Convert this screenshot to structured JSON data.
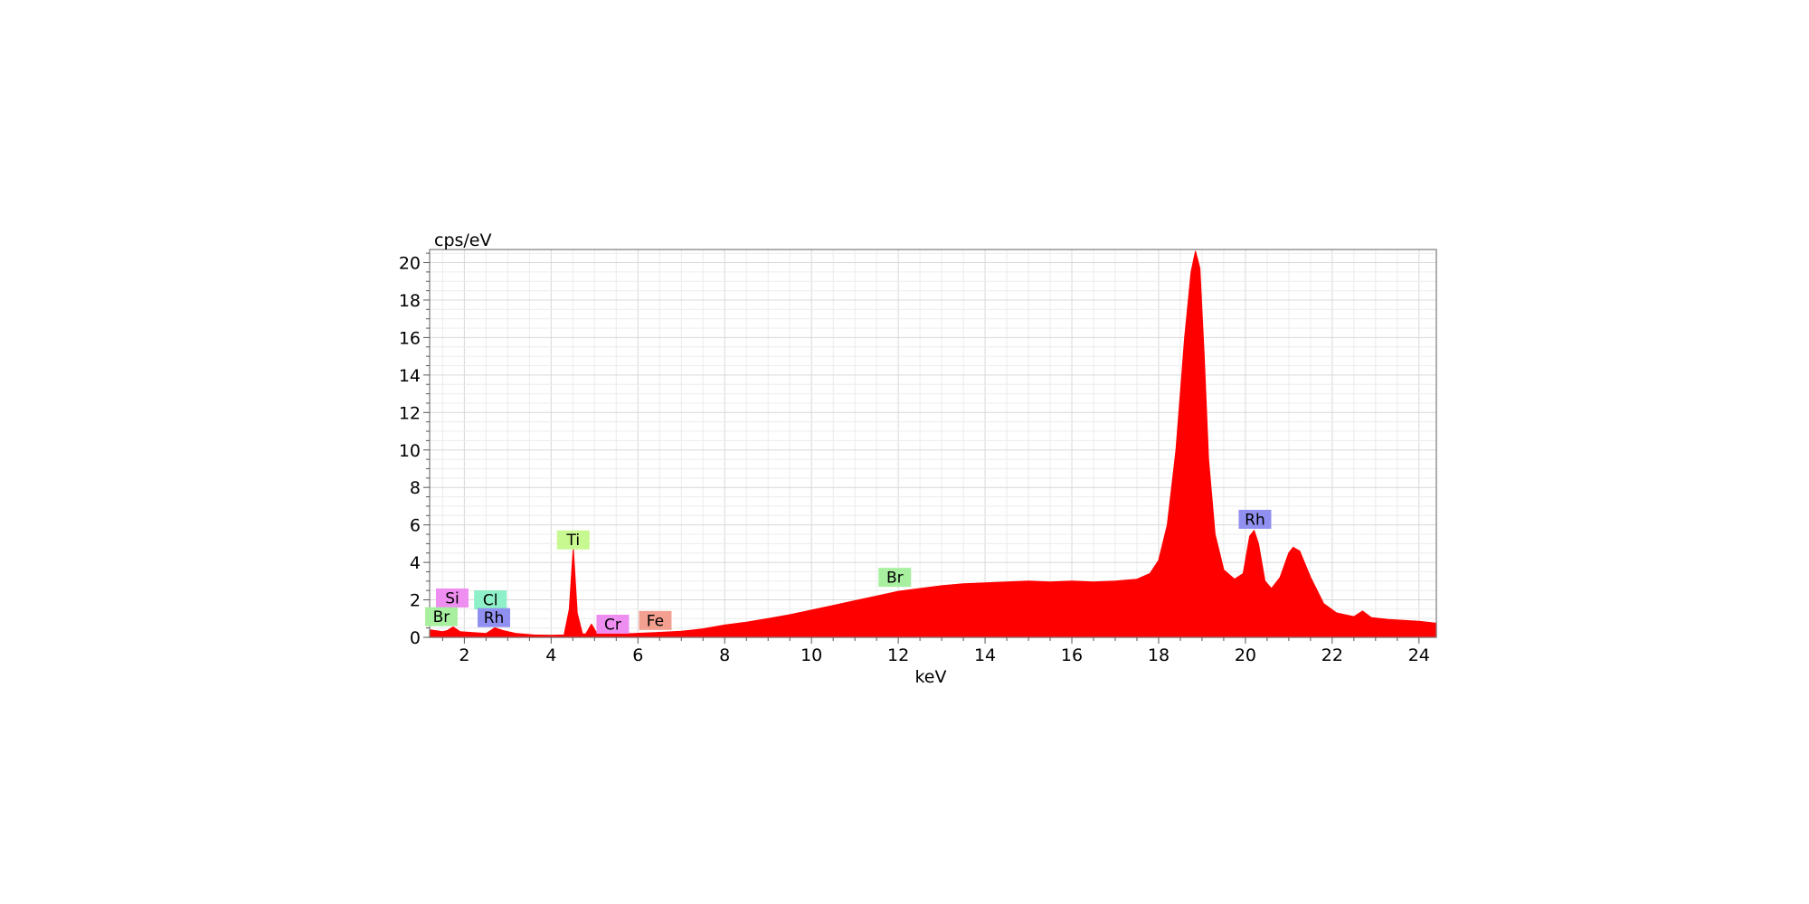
{
  "chart_data": {
    "type": "area",
    "title": "",
    "xlabel": "keV",
    "ylabel": "cps/eV",
    "xlim": [
      1.2,
      24.4
    ],
    "ylim": [
      0,
      20.7
    ],
    "x_ticks": [
      2,
      4,
      6,
      8,
      10,
      12,
      14,
      16,
      18,
      20,
      22,
      24
    ],
    "y_ticks": [
      0,
      2,
      4,
      6,
      8,
      10,
      12,
      14,
      16,
      18,
      20
    ],
    "grid": true,
    "fill_color": "#ff0000",
    "series": [
      {
        "x": [
          1.2,
          1.5,
          1.6,
          1.74,
          1.9,
          2.2,
          2.5,
          2.7,
          2.9,
          3.2,
          3.6,
          4.0,
          4.3,
          4.42,
          4.51,
          4.6,
          4.72,
          4.8,
          4.93,
          5.05,
          5.4,
          5.9,
          6.4,
          7.0,
          7.5,
          8.0,
          8.5,
          9.0,
          9.5,
          10.0,
          10.5,
          11.0,
          11.5,
          12.0,
          12.5,
          13.0,
          13.5,
          14.0,
          14.5,
          15.0,
          15.5,
          16.0,
          16.5,
          17.0,
          17.5,
          17.8,
          18.0,
          18.2,
          18.4,
          18.6,
          18.75,
          18.85,
          18.95,
          19.05,
          19.15,
          19.3,
          19.5,
          19.75,
          19.95,
          20.1,
          20.2,
          20.3,
          20.45,
          20.6,
          20.8,
          21.0,
          21.1,
          21.25,
          21.5,
          21.8,
          22.1,
          22.5,
          22.7,
          22.9,
          23.3,
          24.0,
          24.4
        ],
        "y": [
          0.4,
          0.3,
          0.35,
          0.55,
          0.3,
          0.25,
          0.2,
          0.5,
          0.35,
          0.2,
          0.12,
          0.1,
          0.12,
          1.5,
          4.7,
          1.3,
          0.18,
          0.18,
          0.7,
          0.22,
          0.18,
          0.2,
          0.25,
          0.32,
          0.45,
          0.65,
          0.8,
          1.0,
          1.2,
          1.45,
          1.7,
          1.95,
          2.2,
          2.45,
          2.6,
          2.75,
          2.85,
          2.9,
          2.95,
          3.0,
          2.95,
          3.0,
          2.95,
          3.0,
          3.1,
          3.4,
          4.1,
          6.0,
          10.0,
          16.0,
          19.5,
          20.6,
          19.7,
          15.0,
          9.5,
          5.5,
          3.6,
          3.1,
          3.4,
          5.4,
          5.7,
          5.0,
          3.0,
          2.6,
          3.2,
          4.5,
          4.8,
          4.6,
          3.2,
          1.8,
          1.3,
          1.1,
          1.4,
          1.05,
          0.95,
          0.85,
          0.75
        ]
      }
    ],
    "peak_labels": [
      {
        "text": "Si",
        "x": 1.72,
        "y": 2.1,
        "color": "#ee8ef0"
      },
      {
        "text": "Br",
        "x": 1.47,
        "y": 1.1,
        "color": "#a8f0a0"
      },
      {
        "text": "Cl",
        "x": 2.6,
        "y": 2.0,
        "color": "#8ef0c8"
      },
      {
        "text": "Rh",
        "x": 2.68,
        "y": 1.05,
        "color": "#9090f0"
      },
      {
        "text": "Ti",
        "x": 4.51,
        "y": 5.2,
        "color": "#c8f890"
      },
      {
        "text": "Cr",
        "x": 5.42,
        "y": 0.7,
        "color": "#ee8ef0"
      },
      {
        "text": "Fe",
        "x": 6.4,
        "y": 0.9,
        "color": "#f4a090"
      },
      {
        "text": "Br",
        "x": 11.92,
        "y": 3.2,
        "color": "#a8f0a0"
      },
      {
        "text": "Rh",
        "x": 20.22,
        "y": 6.3,
        "color": "#9090f0"
      }
    ]
  }
}
